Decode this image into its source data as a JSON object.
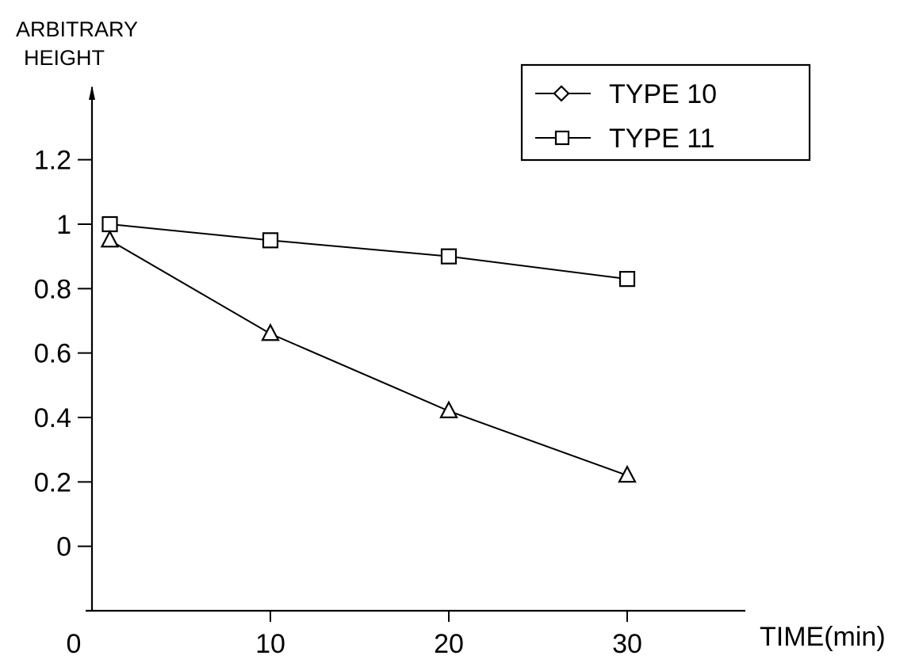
{
  "chart_data": {
    "type": "line",
    "ylabel_lines": [
      "ARBITRARY",
      "HEIGHT"
    ],
    "xlabel": "TIME(min)",
    "y_ticks": [
      "0",
      "0.2",
      "0.4",
      "0.6",
      "0.8",
      "1",
      "1.2"
    ],
    "x_ticks": [
      "0",
      "10",
      "20",
      "30"
    ],
    "xlim": [
      0,
      36
    ],
    "ylim": [
      -0.2,
      1.45
    ],
    "legend": {
      "position": "top-right",
      "entries": [
        {
          "label": "TYPE 10",
          "marker": "diamond"
        },
        {
          "label": "TYPE 11",
          "marker": "square"
        }
      ]
    },
    "series": [
      {
        "marker": "square",
        "x": [
          1,
          10,
          20,
          30
        ],
        "y": [
          1.0,
          0.95,
          0.9,
          0.83
        ]
      },
      {
        "marker": "triangle",
        "x": [
          1,
          10,
          20,
          30
        ],
        "y": [
          0.95,
          0.66,
          0.42,
          0.22
        ]
      }
    ]
  }
}
